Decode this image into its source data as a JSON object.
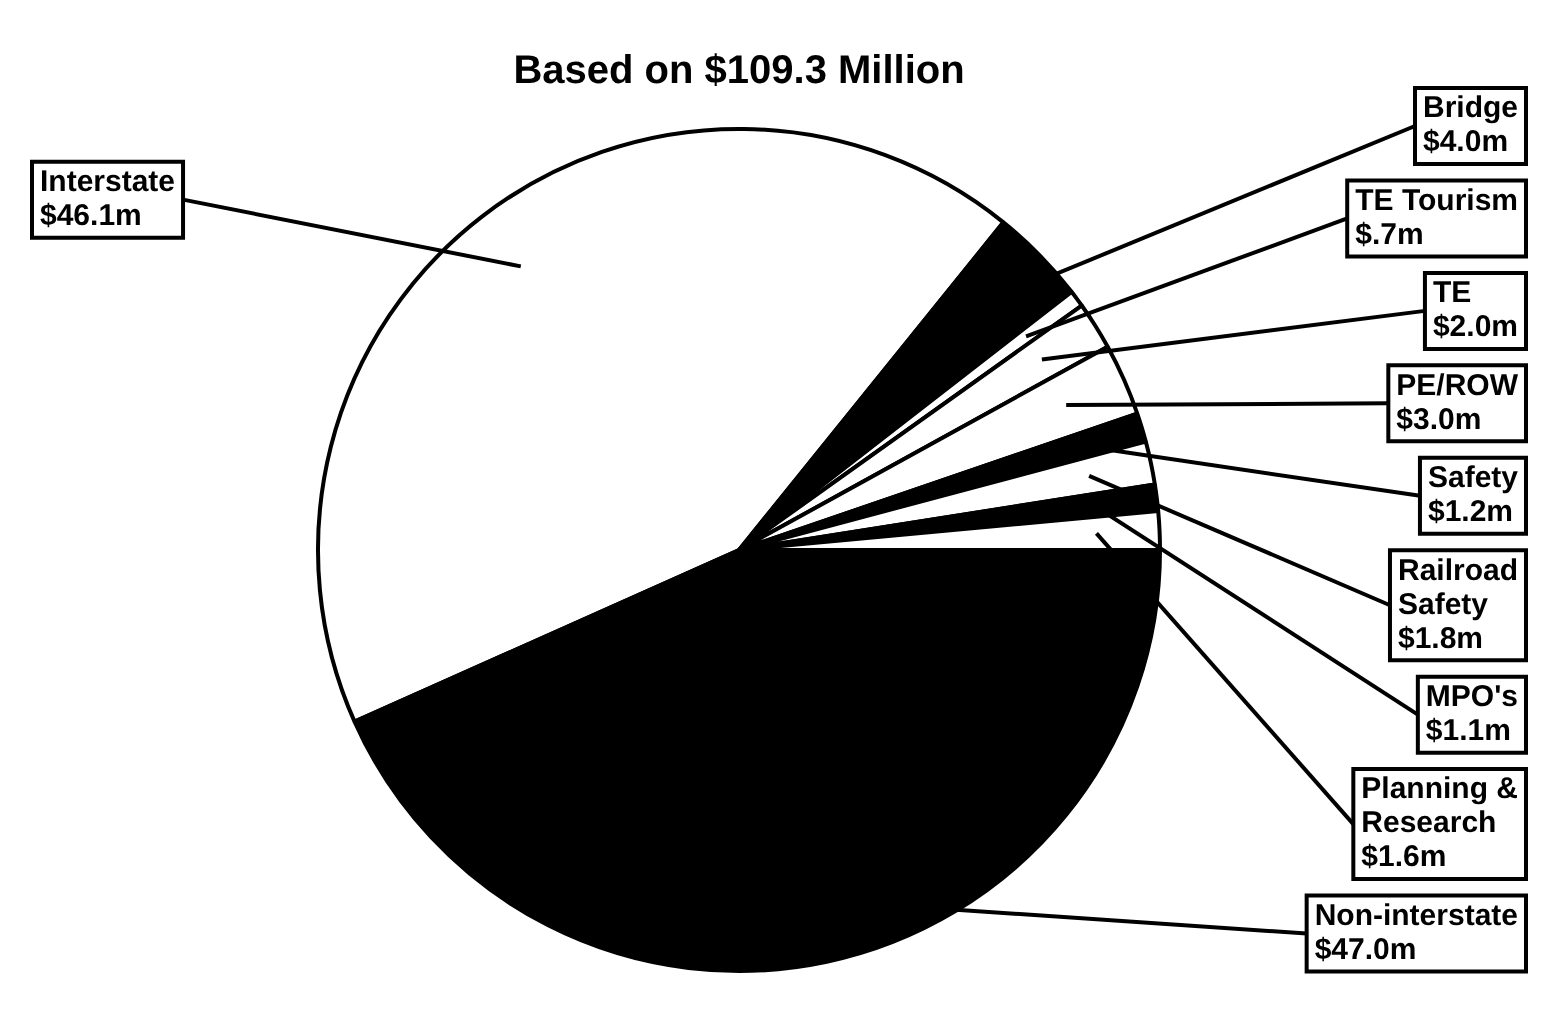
{
  "chart_data": {
    "type": "pie",
    "title": "Based on $109.3 Million",
    "categories": [
      "Interstate",
      "Bridge",
      "TE Tourism",
      "TE",
      "PE/ROW",
      "Safety",
      "Railroad Safety",
      "MPO's",
      "Planning & Research",
      "Non-interstate"
    ],
    "values": [
      46.1,
      4.0,
      0.7,
      2.0,
      3.0,
      1.2,
      1.8,
      1.1,
      1.6,
      47.0
    ],
    "colors": [
      "#ffffff",
      "#000000",
      "#ffffff",
      "#ffffff",
      "#ffffff",
      "#000000",
      "#ffffff",
      "#000000",
      "#ffffff",
      "#000000"
    ],
    "value_labels": [
      "$46.1m",
      "$4.0m",
      "$.7m",
      "$2.0m",
      "$3.0m",
      "$1.2m",
      "$1.8m",
      "$1.1m",
      "$1.6m",
      "$47.0m"
    ],
    "legend": false
  }
}
